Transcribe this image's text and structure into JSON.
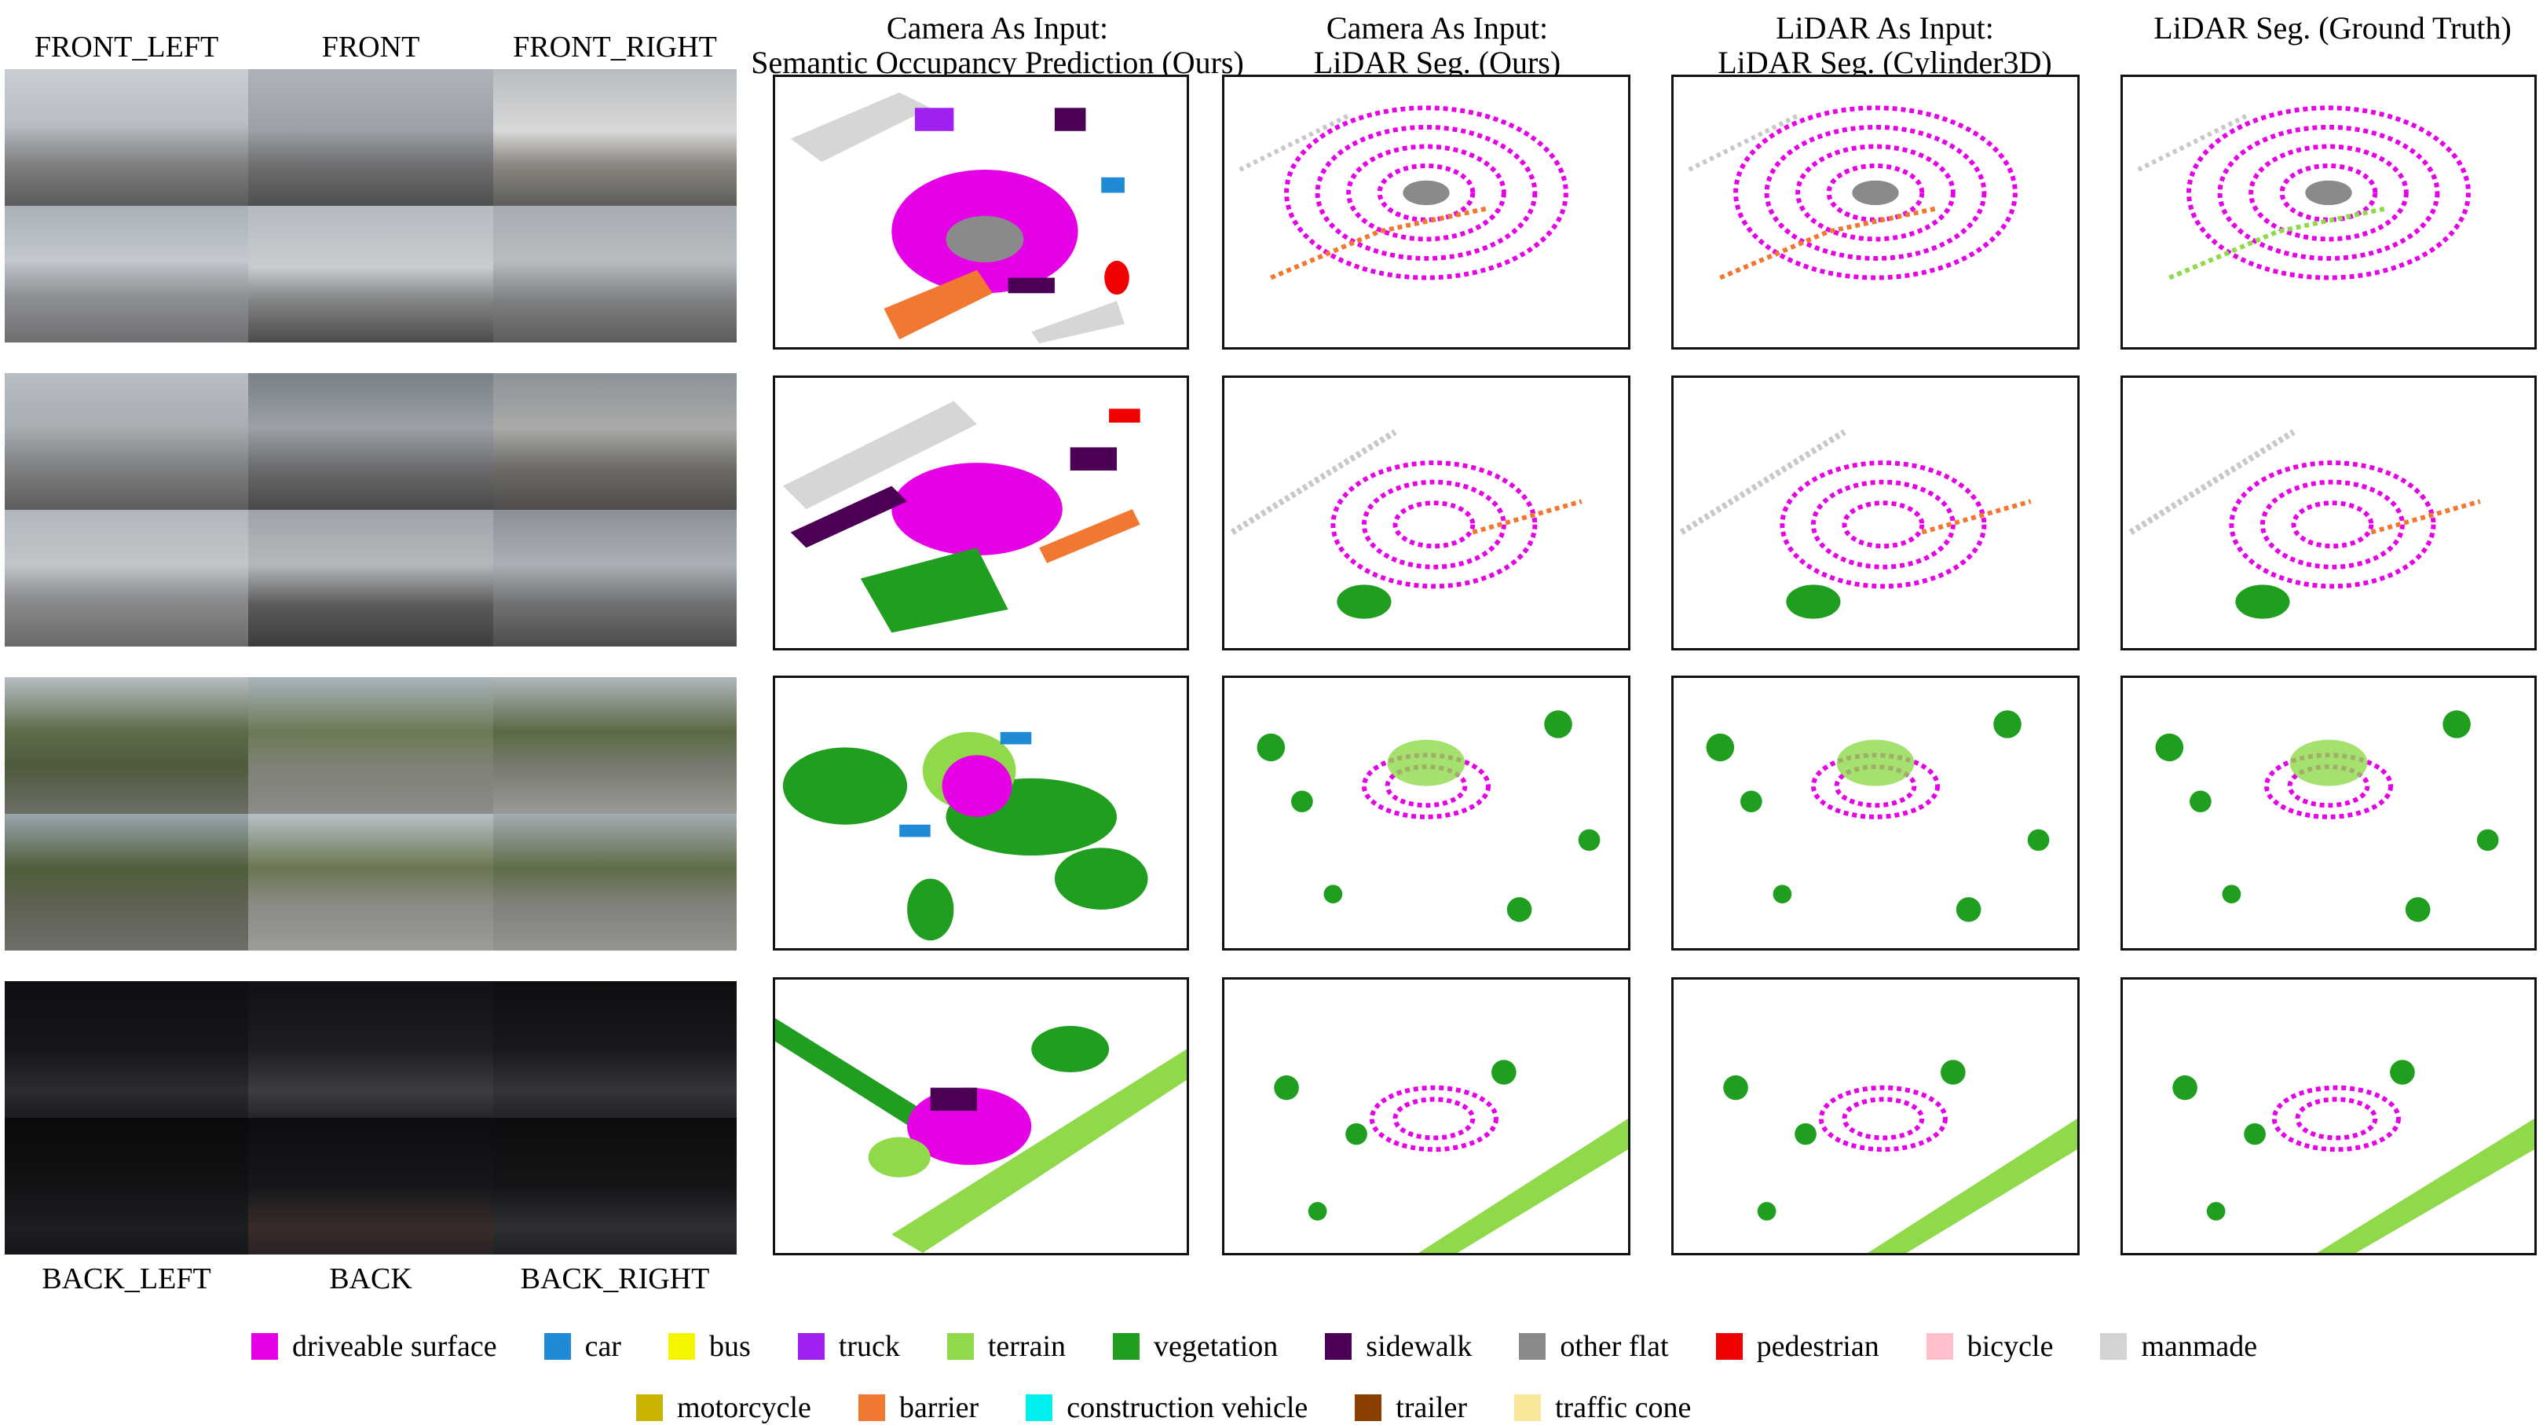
{
  "camera_labels": {
    "front_left": "FRONT_LEFT",
    "front": "FRONT",
    "front_right": "FRONT_RIGHT",
    "back_left": "BACK_LEFT",
    "back": "BACK",
    "back_right": "BACK_RIGHT"
  },
  "columns": [
    {
      "line1": "Camera As Input:",
      "line2": "Semantic Occupancy Prediction (Ours)"
    },
    {
      "line1": "Camera As Input:",
      "line2": "LiDAR Seg. (Ours)"
    },
    {
      "line1": "LiDAR As Input:",
      "line2": "LiDAR Seg. (Cylinder3D)"
    },
    {
      "line1": "",
      "line2": "LiDAR Seg. (Ground Truth)"
    }
  ],
  "legend": {
    "row1": [
      {
        "label": "driveable surface",
        "color": "#e600e6"
      },
      {
        "label": "car",
        "color": "#1f8ad6"
      },
      {
        "label": "bus",
        "color": "#f5f500"
      },
      {
        "label": "truck",
        "color": "#a020f0"
      },
      {
        "label": "terrain",
        "color": "#8fd94a"
      },
      {
        "label": "vegetation",
        "color": "#1f9e1f"
      },
      {
        "label": "sidewalk",
        "color": "#4b0055"
      },
      {
        "label": "other flat",
        "color": "#8a8a8a"
      },
      {
        "label": "pedestrian",
        "color": "#f00000"
      },
      {
        "label": "bicycle",
        "color": "#ffc0cb"
      },
      {
        "label": "manmade",
        "color": "#d3d3d3"
      }
    ],
    "row2": [
      {
        "label": "motorcycle",
        "color": "#c8b400"
      },
      {
        "label": "barrier",
        "color": "#f07830"
      },
      {
        "label": "construction vehicle",
        "color": "#00f0f0"
      },
      {
        "label": "trailer",
        "color": "#8b4000"
      },
      {
        "label": "traffic cone",
        "color": "#fae89a"
      }
    ]
  }
}
